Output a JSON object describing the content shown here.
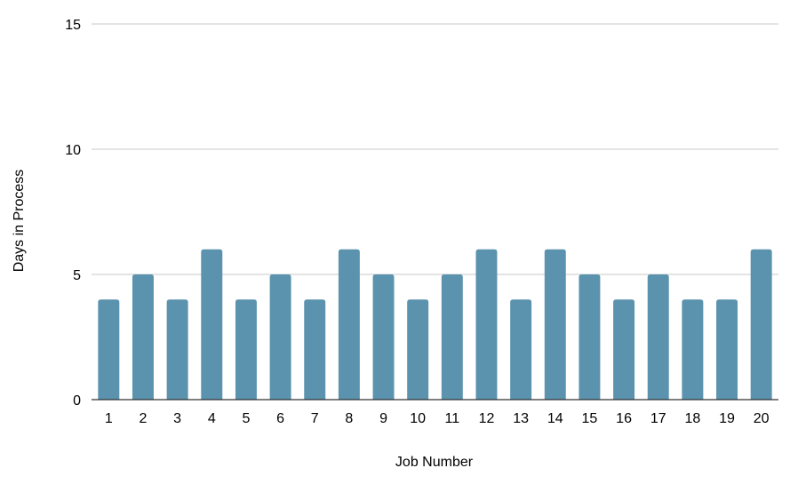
{
  "chart_data": {
    "type": "bar",
    "title": "",
    "xlabel": "Job Number",
    "ylabel": "Days in Process",
    "ylim": [
      0,
      15
    ],
    "yticks": [
      0,
      5,
      10,
      15
    ],
    "grid": true,
    "legend": "none",
    "bar_color": "#5b93ae",
    "categories": [
      "1",
      "2",
      "3",
      "4",
      "5",
      "6",
      "7",
      "8",
      "9",
      "10",
      "11",
      "12",
      "13",
      "14",
      "15",
      "16",
      "17",
      "18",
      "19",
      "20"
    ],
    "series": [
      {
        "values": [
          4,
          5,
          4,
          6,
          4,
          5,
          4,
          6,
          5,
          4,
          5,
          6,
          4,
          6,
          5,
          4,
          5,
          4,
          4,
          6
        ]
      }
    ]
  }
}
